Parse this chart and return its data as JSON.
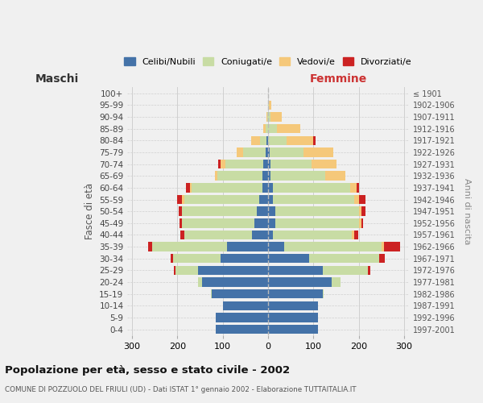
{
  "age_groups": [
    "0-4",
    "5-9",
    "10-14",
    "15-19",
    "20-24",
    "25-29",
    "30-34",
    "35-39",
    "40-44",
    "45-49",
    "50-54",
    "55-59",
    "60-64",
    "65-69",
    "70-74",
    "75-79",
    "80-84",
    "85-89",
    "90-94",
    "95-99",
    "100+"
  ],
  "birth_years": [
    "1997-2001",
    "1992-1996",
    "1987-1991",
    "1982-1986",
    "1977-1981",
    "1972-1976",
    "1967-1971",
    "1962-1966",
    "1957-1961",
    "1952-1956",
    "1947-1951",
    "1942-1946",
    "1937-1941",
    "1932-1936",
    "1927-1931",
    "1922-1926",
    "1917-1921",
    "1912-1916",
    "1907-1911",
    "1902-1906",
    "≤ 1901"
  ],
  "maschi": {
    "celibi": [
      115,
      115,
      100,
      125,
      145,
      155,
      105,
      90,
      35,
      30,
      25,
      20,
      13,
      12,
      10,
      5,
      3,
      0,
      0,
      0,
      0
    ],
    "coniugati": [
      0,
      0,
      0,
      2,
      10,
      50,
      105,
      165,
      150,
      160,
      165,
      165,
      155,
      100,
      85,
      50,
      15,
      5,
      2,
      0,
      0
    ],
    "vedovi": [
      0,
      0,
      0,
      0,
      0,
      0,
      0,
      0,
      0,
      0,
      0,
      5,
      5,
      5,
      10,
      15,
      20,
      5,
      2,
      0,
      0
    ],
    "divorziati": [
      0,
      0,
      0,
      0,
      0,
      2,
      5,
      10,
      8,
      5,
      8,
      10,
      8,
      0,
      5,
      0,
      0,
      0,
      0,
      0,
      0
    ]
  },
  "femmine": {
    "nubili": [
      110,
      110,
      110,
      120,
      140,
      120,
      90,
      35,
      10,
      15,
      15,
      10,
      10,
      5,
      5,
      3,
      0,
      0,
      0,
      0,
      0
    ],
    "coniugate": [
      0,
      0,
      0,
      2,
      20,
      100,
      155,
      215,
      175,
      185,
      185,
      180,
      170,
      120,
      90,
      75,
      40,
      20,
      5,
      2,
      0
    ],
    "vedove": [
      0,
      0,
      0,
      0,
      0,
      0,
      0,
      5,
      5,
      5,
      5,
      10,
      15,
      45,
      55,
      65,
      60,
      50,
      25,
      5,
      0
    ],
    "divorziate": [
      0,
      0,
      0,
      0,
      0,
      5,
      12,
      35,
      8,
      5,
      10,
      15,
      5,
      0,
      0,
      0,
      5,
      0,
      0,
      0,
      0
    ]
  },
  "colors": {
    "celibi": "#4472a8",
    "coniugati": "#c8dca4",
    "vedovi": "#f5c87a",
    "divorziati": "#cc2222"
  },
  "xlim": 310,
  "title": "Popolazione per età, sesso e stato civile - 2002",
  "subtitle": "COMUNE DI POZZUOLO DEL FRIULI (UD) - Dati ISTAT 1° gennaio 2002 - Elaborazione TUTTAITALIA.IT",
  "ylabel_left": "Fasce di età",
  "ylabel_right": "Anni di nascita",
  "legend_labels": [
    "Celibi/Nubili",
    "Coniugati/e",
    "Vedovi/e",
    "Divorziati/e"
  ],
  "bg_color": "#f0f0f0",
  "grid_color": "#d0d0d0",
  "maschi_label_color": "#333333",
  "femmine_label_color": "#cc3333"
}
